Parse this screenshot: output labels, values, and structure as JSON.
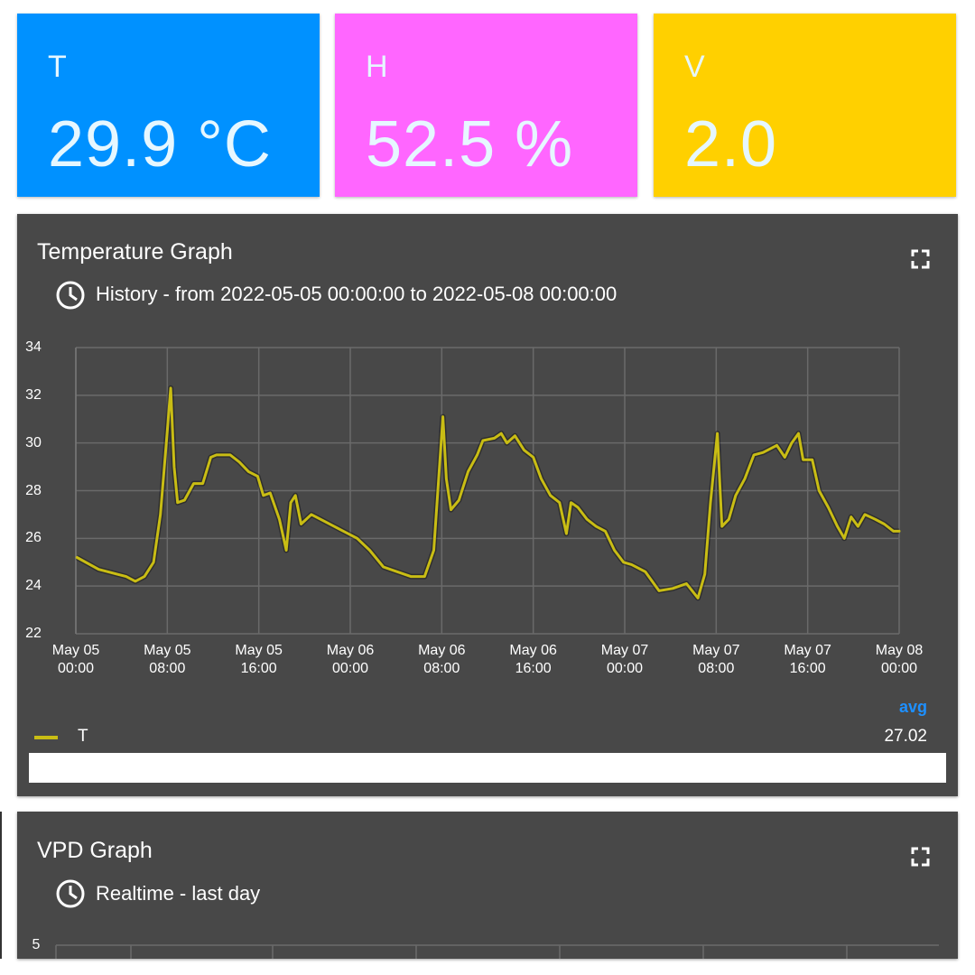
{
  "tiles": [
    {
      "label": "T",
      "value": "29.9 °C",
      "color": "#0091ff"
    },
    {
      "label": "H",
      "value": "52.5 %",
      "color": "#ff66ff"
    },
    {
      "label": "V",
      "value": "2.0",
      "color": "#ffd000"
    }
  ],
  "chart_data": {
    "type": "line",
    "title": "Temperature Graph",
    "subtitle": "History - from 2022-05-05 00:00:00 to 2022-05-08 00:00:00",
    "x": [
      0.1,
      2,
      4.4,
      5.2,
      6,
      6.8,
      7.4,
      8,
      8.3,
      8.6,
      8.9,
      9.5,
      10.3,
      11.1,
      11.8,
      12.3,
      13.5,
      14.3,
      15.1,
      15.9,
      16.4,
      17,
      17.8,
      18.4,
      18.8,
      19.2,
      19.7,
      20.6,
      21.8,
      23.4,
      24.6,
      25.7,
      26.9,
      28.1,
      29.3,
      30.5,
      31.3,
      31.8,
      32.1,
      32.4,
      32.8,
      33.5,
      34.3,
      35.1,
      35.6,
      36.6,
      37.2,
      37.7,
      38.4,
      39.2,
      40,
      40.7,
      41.5,
      42.3,
      42.9,
      43.3,
      43.9,
      44.7,
      45.5,
      46.3,
      47.1,
      47.9,
      48.6,
      49.8,
      51,
      52.2,
      53.4,
      54.4,
      55,
      55.5,
      56.1,
      56.5,
      57.1,
      57.7,
      58.5,
      59.3,
      60.1,
      61.3,
      62,
      62.6,
      63.2,
      63.6,
      64.4,
      65,
      65.8,
      66.6,
      67.2,
      67.8,
      68.4,
      69,
      69.9,
      70.7,
      71.5,
      72
    ],
    "series": [
      {
        "name": "T",
        "color": "#c9bd14",
        "avg": 27.02,
        "values": [
          25.2,
          24.7,
          24.4,
          24.2,
          24.4,
          25.0,
          27.0,
          30.5,
          32.3,
          29.0,
          27.5,
          27.6,
          28.3,
          28.3,
          29.4,
          29.5,
          29.5,
          29.2,
          28.8,
          28.6,
          27.8,
          27.9,
          26.8,
          25.5,
          27.5,
          27.8,
          26.6,
          27.0,
          26.7,
          26.3,
          26.0,
          25.5,
          24.8,
          24.6,
          24.4,
          24.4,
          25.5,
          29.0,
          31.1,
          28.5,
          27.2,
          27.6,
          28.8,
          29.5,
          30.1,
          30.2,
          30.4,
          30.0,
          30.3,
          29.7,
          29.4,
          28.5,
          27.8,
          27.5,
          26.2,
          27.5,
          27.3,
          26.8,
          26.5,
          26.3,
          25.5,
          25.0,
          24.9,
          24.6,
          23.8,
          23.9,
          24.1,
          23.5,
          24.5,
          27.5,
          30.4,
          26.5,
          26.8,
          27.8,
          28.5,
          29.5,
          29.6,
          29.9,
          29.4,
          30.0,
          30.4,
          29.3,
          29.3,
          28.0,
          27.3,
          26.5,
          26.0,
          26.9,
          26.5,
          27.0,
          26.8,
          26.6,
          26.3,
          26.3
        ]
      }
    ],
    "avg_label": "avg",
    "xlim": [
      0,
      72
    ],
    "xticks": [
      {
        "value": 0,
        "label": "May 05\n00:00"
      },
      {
        "value": 8,
        "label": "May 05\n08:00"
      },
      {
        "value": 16,
        "label": "May 05\n16:00"
      },
      {
        "value": 24,
        "label": "May 06\n00:00"
      },
      {
        "value": 32,
        "label": "May 06\n08:00"
      },
      {
        "value": 40,
        "label": "May 06\n16:00"
      },
      {
        "value": 48,
        "label": "May 07\n00:00"
      },
      {
        "value": 56,
        "label": "May 07\n08:00"
      },
      {
        "value": 64,
        "label": "May 07\n16:00"
      },
      {
        "value": 72,
        "label": "May 08\n00:00"
      }
    ],
    "ylim": [
      22,
      34
    ],
    "yticks": [
      22,
      24,
      26,
      28,
      30,
      32,
      34
    ],
    "grid": true
  },
  "vpd_panel": {
    "title": "VPD Graph",
    "subtitle": "Realtime - last day",
    "yticks": [
      5
    ]
  }
}
